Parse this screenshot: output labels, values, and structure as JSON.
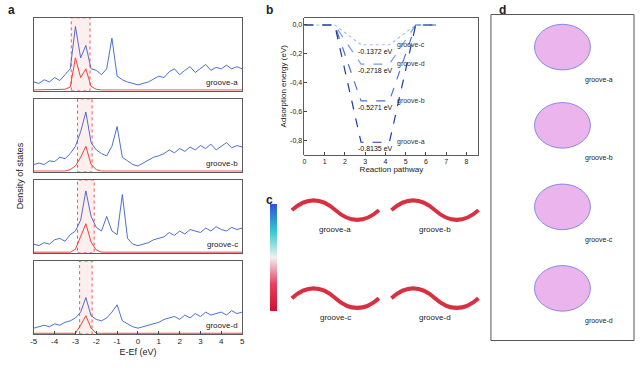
{
  "chart_data": [
    {
      "type": "line",
      "title": "a",
      "x_label": "E-Ef (eV)",
      "y_label": "Density of states",
      "xlim": [
        -5,
        5
      ],
      "xticks": [
        -5,
        -4,
        -3,
        -2,
        -1,
        0,
        1,
        2,
        3,
        4,
        5
      ],
      "tick_labels": "x",
      "x": [
        -5,
        -4.75,
        -4.5,
        -4.25,
        -4,
        -3.75,
        -3.5,
        -3.25,
        -3,
        -2.75,
        -2.5,
        -2.25,
        -2,
        -1.75,
        -1.5,
        -1.25,
        -1,
        -0.75,
        -0.5,
        -0.25,
        0,
        0.25,
        0.5,
        0.75,
        1,
        1.25,
        1.5,
        1.75,
        2,
        2.25,
        2.5,
        2.75,
        3,
        3.25,
        3.5,
        3.75,
        4,
        4.25,
        4.5,
        4.75,
        5
      ],
      "panels": [
        {
          "label": "groove-a",
          "ylim": [
            0,
            1
          ],
          "highlight": [
            -3.2,
            -2.3
          ],
          "series": [
            {
              "color": "#3a5fcd",
              "values": [
                0.12,
                0.1,
                0.15,
                0.12,
                0.18,
                0.14,
                0.22,
                0.3,
                0.88,
                0.45,
                0.62,
                0.3,
                0.28,
                0.22,
                0.3,
                0.72,
                0.2,
                0.15,
                0.12,
                0.1,
                0.08,
                0.1,
                0.12,
                0.16,
                0.2,
                0.18,
                0.26,
                0.3,
                0.22,
                0.28,
                0.33,
                0.25,
                0.3,
                0.36,
                0.28,
                0.32,
                0.3,
                0.35,
                0.3,
                0.33,
                0.3
              ]
            },
            {
              "color": "#e8302a",
              "values": [
                0.01,
                0.01,
                0.01,
                0.01,
                0.01,
                0.01,
                0.02,
                0.05,
                0.45,
                0.18,
                0.3,
                0.06,
                0.02,
                0.01,
                0.01,
                0.02,
                0.01,
                0.01,
                0.01,
                0.01,
                0.01,
                0.01,
                0.01,
                0.01,
                0.01,
                0.01,
                0.01,
                0.01,
                0.01,
                0.01,
                0.01,
                0.01,
                0.01,
                0.01,
                0.01,
                0.01,
                0.01,
                0.01,
                0.01,
                0.01,
                0.01
              ]
            }
          ]
        },
        {
          "label": "groove-b",
          "ylim": [
            0,
            1
          ],
          "highlight": [
            -2.9,
            -2.2
          ],
          "series": [
            {
              "color": "#3a5fcd",
              "values": [
                0.1,
                0.12,
                0.1,
                0.15,
                0.14,
                0.2,
                0.18,
                0.25,
                0.35,
                0.55,
                0.82,
                0.4,
                0.3,
                0.25,
                0.22,
                0.35,
                0.62,
                0.2,
                0.15,
                0.1,
                0.08,
                0.12,
                0.15,
                0.2,
                0.22,
                0.25,
                0.3,
                0.26,
                0.32,
                0.28,
                0.34,
                0.3,
                0.36,
                0.32,
                0.38,
                0.3,
                0.35,
                0.4,
                0.33,
                0.36,
                0.34
              ]
            },
            {
              "color": "#e8302a",
              "values": [
                0.01,
                0.01,
                0.01,
                0.01,
                0.01,
                0.01,
                0.01,
                0.03,
                0.08,
                0.2,
                0.35,
                0.1,
                0.03,
                0.01,
                0.01,
                0.01,
                0.01,
                0.01,
                0.01,
                0.01,
                0.01,
                0.01,
                0.01,
                0.01,
                0.01,
                0.01,
                0.01,
                0.01,
                0.01,
                0.01,
                0.01,
                0.01,
                0.01,
                0.01,
                0.01,
                0.01,
                0.01,
                0.01,
                0.01,
                0.01,
                0.01
              ]
            }
          ]
        },
        {
          "label": "groove-c",
          "ylim": [
            0,
            1
          ],
          "highlight": [
            -2.9,
            -2.1
          ],
          "series": [
            {
              "color": "#3a5fcd",
              "values": [
                0.12,
                0.1,
                0.14,
                0.12,
                0.18,
                0.2,
                0.16,
                0.25,
                0.3,
                0.45,
                0.85,
                0.5,
                0.35,
                0.3,
                0.5,
                0.3,
                0.25,
                0.8,
                0.2,
                0.12,
                0.1,
                0.12,
                0.14,
                0.18,
                0.2,
                0.22,
                0.28,
                0.24,
                0.3,
                0.26,
                0.32,
                0.3,
                0.28,
                0.34,
                0.3,
                0.36,
                0.32,
                0.3,
                0.35,
                0.32,
                0.34
              ]
            },
            {
              "color": "#e8302a",
              "values": [
                0.01,
                0.01,
                0.01,
                0.01,
                0.01,
                0.01,
                0.01,
                0.01,
                0.05,
                0.22,
                0.4,
                0.15,
                0.04,
                0.01,
                0.01,
                0.01,
                0.01,
                0.01,
                0.01,
                0.01,
                0.01,
                0.01,
                0.01,
                0.01,
                0.01,
                0.01,
                0.01,
                0.01,
                0.01,
                0.01,
                0.01,
                0.01,
                0.01,
                0.01,
                0.01,
                0.01,
                0.01,
                0.01,
                0.01,
                0.01,
                0.01
              ]
            }
          ]
        },
        {
          "label": "groove-d",
          "ylim": [
            0,
            1
          ],
          "highlight": [
            -2.8,
            -2.2
          ],
          "series": [
            {
              "color": "#3a5fcd",
              "values": [
                0.08,
                0.1,
                0.12,
                0.1,
                0.14,
                0.12,
                0.16,
                0.18,
                0.22,
                0.3,
                0.5,
                0.25,
                0.2,
                0.18,
                0.22,
                0.3,
                0.4,
                0.18,
                0.14,
                0.1,
                0.08,
                0.1,
                0.12,
                0.14,
                0.16,
                0.2,
                0.22,
                0.24,
                0.2,
                0.26,
                0.22,
                0.28,
                0.24,
                0.3,
                0.26,
                0.28,
                0.3,
                0.26,
                0.32,
                0.28,
                0.3
              ]
            },
            {
              "color": "#e8302a",
              "values": [
                0.01,
                0.01,
                0.01,
                0.01,
                0.01,
                0.01,
                0.01,
                0.01,
                0.01,
                0.12,
                0.25,
                0.08,
                0.01,
                0.01,
                0.01,
                0.01,
                0.01,
                0.01,
                0.01,
                0.01,
                0.01,
                0.01,
                0.01,
                0.01,
                0.01,
                0.01,
                0.01,
                0.01,
                0.01,
                0.01,
                0.01,
                0.01,
                0.01,
                0.01,
                0.01,
                0.01,
                0.01,
                0.01,
                0.01,
                0.01,
                0.01
              ]
            }
          ]
        }
      ]
    },
    {
      "type": "line",
      "title": "b",
      "x_label": "Reaction pathway",
      "y_label": "Adsorption energy (eV)",
      "xlim": [
        0,
        8.6
      ],
      "xticks": [
        0,
        1,
        2,
        3,
        4,
        5,
        6,
        7,
        8
      ],
      "ylim": [
        -0.9,
        0.05
      ],
      "yticks": [
        {
          "value": 0,
          "label": "0,0"
        },
        {
          "value": -0.2,
          "label": "-0,2"
        },
        {
          "value": -0.4,
          "label": "-0,4"
        },
        {
          "value": -0.6,
          "label": "-0,6"
        },
        {
          "value": -0.8,
          "label": "-0,8"
        }
      ],
      "x": [
        0,
        1.5,
        2.8,
        4.2,
        5.5,
        6.5
      ],
      "series": [
        {
          "name": "groove-c",
          "color": "#a9bfe9",
          "line_style": "dot",
          "values": [
            0,
            0,
            -0.1372,
            -0.1372,
            0,
            0
          ],
          "label": "-0.1372 eV"
        },
        {
          "name": "groove-d",
          "color": "#7d9be0",
          "line_style": "dash",
          "values": [
            0,
            0,
            -0.2718,
            -0.2718,
            0,
            0
          ],
          "label": "-0.2718 eV"
        },
        {
          "name": "groove-b",
          "color": "#4d6fd0",
          "line_style": "dash",
          "values": [
            0,
            0,
            -0.5271,
            -0.5271,
            0,
            0
          ],
          "label": "-0.5271 eV"
        },
        {
          "name": "groove-a",
          "color": "#1e3a9c",
          "line_style": "dash",
          "values": [
            0,
            0,
            -0.8135,
            -0.8135,
            0,
            0
          ],
          "label": "-0.8135 eV"
        }
      ]
    },
    {
      "type": "image",
      "title": "c",
      "labels": [
        "groove-a",
        "groove-b",
        "groove-c",
        "groove-d"
      ]
    },
    {
      "type": "image",
      "title": "d",
      "labels": [
        "groove-a",
        "groove-b",
        "groove-c",
        "groove-d"
      ]
    }
  ]
}
